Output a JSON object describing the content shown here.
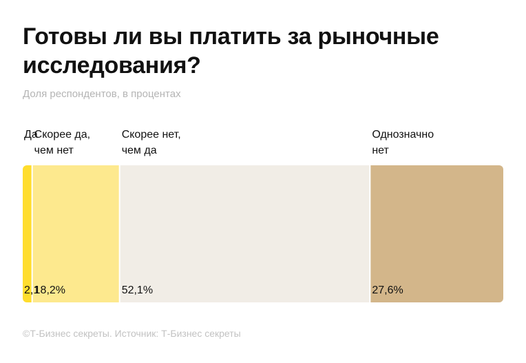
{
  "header": {
    "title": "Готовы ли вы платить за рыночные исследования?",
    "subtitle": "Доля респондентов, в процентах"
  },
  "footer": {
    "text": "©Т‑Бизнес секреты. Источник: Т‑Бизнес секреты"
  },
  "colors": {
    "yes": "#ffdd2d",
    "rather_yes": "#fde98e",
    "rather_no": "#f1ede6",
    "definitely_no": "#d3b68a"
  },
  "chart_data": {
    "type": "bar",
    "orientation": "horizontal-stacked-100",
    "title": "Готовы ли вы платить за рыночные исследования?",
    "subtitle": "Доля респондентов, в процентах",
    "categories": [
      [
        "Да"
      ],
      [
        "Скорее да,",
        "чем нет"
      ],
      [
        "Скорее нет,",
        "чем да"
      ],
      [
        "Однозначно",
        "нет"
      ]
    ],
    "values": [
      2.1,
      18.2,
      52.1,
      27.6
    ],
    "value_labels": [
      "2,1",
      "18,2%",
      "52,1%",
      "27,6%"
    ],
    "colors": [
      "#ffdd2d",
      "#fde98e",
      "#f1ede6",
      "#d3b68a"
    ],
    "unit": "%",
    "total": 100
  }
}
